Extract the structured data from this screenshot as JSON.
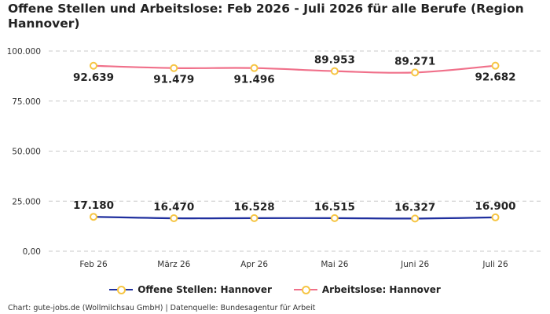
{
  "title": "Offene Stellen und Arbeitslose: Feb 2026 - Juli 2026 für alle Berufe (Region Hannover)",
  "credit": "Chart: gute-jobs.de (Wollmilchsau GmbH) | Datenquelle: Bundesagentur für Arbeit",
  "chart_data": {
    "type": "line",
    "title": "Offene Stellen und Arbeitslose: Feb 2026 - Juli 2026 für alle Berufe (Region Hannover)",
    "categories": [
      "Feb 26",
      "März 26",
      "Apr 26",
      "Mai 26",
      "Juni 26",
      "Juli 26"
    ],
    "ylim": [
      0,
      100000
    ],
    "yticks": [
      0,
      25000,
      50000,
      75000,
      100000
    ],
    "ytick_labels": [
      "0,00",
      "25.000",
      "50.000",
      "75.000",
      "100.000"
    ],
    "grid": "horizontal-dashed",
    "legend": "bottom-center",
    "marker_color": "#f6c543",
    "series": [
      {
        "name": "Offene Stellen: Hannover",
        "color": "#1f2f9e",
        "values": [
          17180,
          16470,
          16528,
          16515,
          16327,
          16900
        ],
        "labels": [
          "17.180",
          "16.470",
          "16.528",
          "16.515",
          "16.327",
          "16.900"
        ]
      },
      {
        "name": "Arbeitslose: Hannover",
        "color": "#f0708a",
        "values": [
          92639,
          91479,
          91496,
          89953,
          89271,
          92682
        ],
        "labels": [
          "92.639",
          "91.479",
          "91.496",
          "89.953",
          "89.271",
          "92.682"
        ]
      }
    ]
  }
}
